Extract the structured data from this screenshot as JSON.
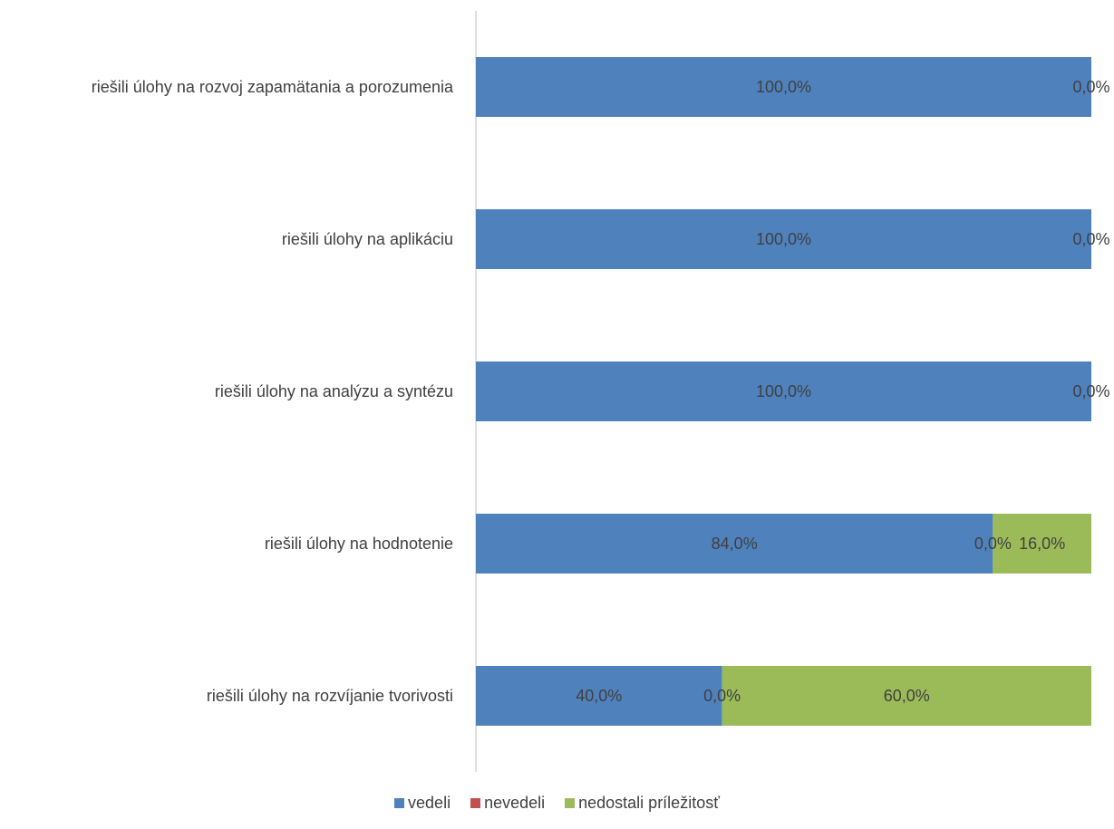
{
  "chart_data": {
    "type": "bar",
    "orientation": "horizontal",
    "stacked": "percent",
    "categories": [
      "riešili úlohy na rozvoj zapamätania a porozumenia",
      "riešili úlohy na aplikáciu",
      "riešili úlohy na analýzu a syntézu",
      "riešili úlohy na hodnotenie",
      "riešili úlohy na rozvíjanie tvorivosti"
    ],
    "series": [
      {
        "name": "vedeli",
        "color": "#4f81bd",
        "values": [
          100,
          100,
          100,
          84,
          40
        ],
        "labels": [
          "100,0%",
          "100,0%",
          "100,0%",
          "84,0%",
          "40,0%"
        ]
      },
      {
        "name": "nevedeli",
        "color": "#c0504d",
        "values": [
          0,
          0,
          0,
          0,
          0
        ],
        "labels": [
          "0,0%",
          "0,0%",
          "0,0%",
          "0,0%",
          "0,0%"
        ]
      },
      {
        "name": "nedostali príležitosť",
        "color": "#9bbb59",
        "values": [
          0,
          0,
          0,
          16,
          60
        ],
        "labels": [
          "",
          "",
          "",
          "16,0%",
          "60,0%"
        ]
      }
    ],
    "xlim": [
      0,
      100
    ],
    "grid": false,
    "legend_position": "bottom"
  }
}
